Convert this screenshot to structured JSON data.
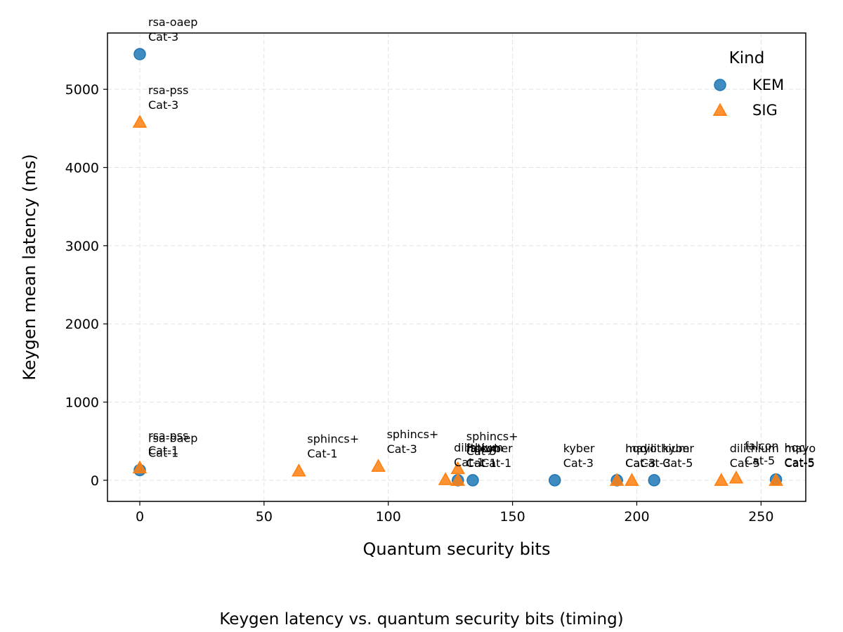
{
  "chart_data": {
    "type": "scatter",
    "caption": "Keygen latency vs. quantum security bits (timing)",
    "xlabel": "Quantum security bits",
    "ylabel": "Keygen mean latency (ms)",
    "xlim": [
      -13,
      268
    ],
    "ylim": [
      -270,
      5720
    ],
    "xticks": [
      0,
      50,
      100,
      150,
      200,
      250
    ],
    "yticks": [
      0,
      1000,
      2000,
      3000,
      4000,
      5000
    ],
    "grid": true,
    "legend": {
      "title": "Kind",
      "placement": "top-right"
    },
    "series": [
      {
        "name": "KEM",
        "marker": "circle",
        "color": "#1f77b4",
        "points": [
          {
            "x": 0,
            "y": 5450,
            "label": [
              "rsa-oaep",
              "Cat-3"
            ]
          },
          {
            "x": 0,
            "y": 130,
            "label": [
              "rsa-oaep",
              "Cat-1"
            ]
          },
          {
            "x": 128,
            "y": 0,
            "label": [
              "hqc",
              "Cat-1"
            ]
          },
          {
            "x": 134,
            "y": 0,
            "label": [
              "kyber",
              "Cat-1"
            ]
          },
          {
            "x": 167,
            "y": 0,
            "label": [
              "kyber",
              "Cat-3"
            ]
          },
          {
            "x": 192,
            "y": 0,
            "label": [
              "hqc",
              "Cat-3"
            ]
          },
          {
            "x": 207,
            "y": 0,
            "label": [
              "kyber",
              "Cat-5"
            ]
          },
          {
            "x": 256,
            "y": 10,
            "label": [
              "hqc",
              "Cat-5"
            ]
          }
        ]
      },
      {
        "name": "SIG",
        "marker": "triangle",
        "color": "#ff7f0e",
        "points": [
          {
            "x": 0,
            "y": 4580,
            "label": [
              "rsa-pss",
              "Cat-3"
            ]
          },
          {
            "x": 0,
            "y": 160,
            "label": [
              "rsa-pss",
              "Cat-1"
            ]
          },
          {
            "x": 64,
            "y": 120,
            "label": [
              "sphincs+",
              "Cat-1"
            ]
          },
          {
            "x": 96,
            "y": 180,
            "label": [
              "sphincs+",
              "Cat-3"
            ]
          },
          {
            "x": 123,
            "y": 10,
            "label": [
              "dilithium",
              "Cat-1"
            ]
          },
          {
            "x": 128,
            "y": 0,
            "label": [
              "falcon",
              "Cat-1"
            ]
          },
          {
            "x": 128,
            "y": 150,
            "label": [
              "sphincs+",
              "Cat-5"
            ]
          },
          {
            "x": 192,
            "y": 0,
            "label": [
              "mayo",
              "Cat-3"
            ]
          },
          {
            "x": 198,
            "y": 0,
            "label": [
              "dilithium",
              "Cat-3"
            ]
          },
          {
            "x": 234,
            "y": 0,
            "label": [
              "dilithium",
              "Cat-5"
            ]
          },
          {
            "x": 240,
            "y": 30,
            "label": [
              "falcon",
              "Cat-5"
            ]
          },
          {
            "x": 256,
            "y": 0,
            "label": [
              "mayo",
              "Cat-5"
            ]
          }
        ]
      }
    ]
  }
}
